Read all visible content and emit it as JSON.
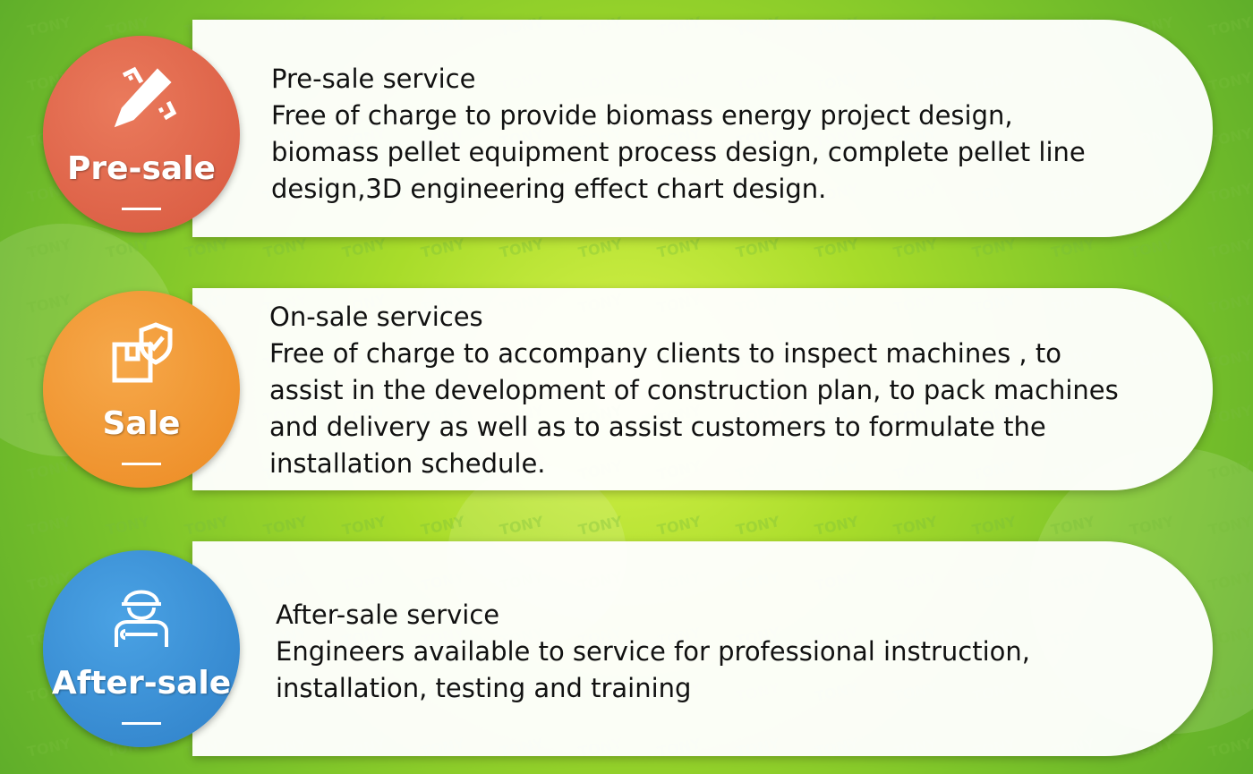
{
  "watermark": "TONY",
  "colors": {
    "presale": "#e06a4f",
    "sale": "#f0902e",
    "aftersale": "#3a8fd6",
    "background": "#a8dc2a"
  },
  "sections": [
    {
      "badge": "Pre-sale",
      "icon": "pencil-ruler-icon",
      "title": "Pre-sale service",
      "lines": [
        "Free of charge to provide biomass energy project design,",
        "biomass pellet equipment process design, complete pellet line",
        "design,3D engineering effect chart design."
      ]
    },
    {
      "badge": "Sale",
      "icon": "box-shield-icon",
      "title": "On-sale services",
      "lines": [
        "Free of charge to accompany clients to inspect machines , to",
        "assist in the development of construction plan, to pack machines",
        "and delivery as well as to assist customers to formulate the",
        "installation schedule."
      ]
    },
    {
      "badge": "After-sale",
      "icon": "engineer-wrench-icon",
      "title": "After-sale service",
      "lines": [
        "Engineers available to service for professional instruction,",
        "installation, testing and training"
      ]
    }
  ]
}
